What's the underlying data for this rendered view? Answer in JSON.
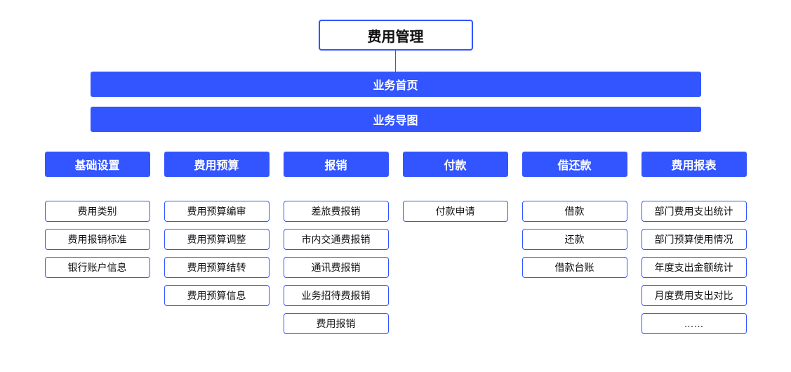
{
  "diagram": {
    "type": "tree",
    "background_color": "#ffffff",
    "accent_color": "#3355ff",
    "text_color": "#111111",
    "connector_color": "#3355ff",
    "border_radius": 4,
    "root_border_width": 2,
    "item_border_width": 1.5,
    "root_font_size": 20,
    "bar_font_size": 16,
    "header_font_size": 16,
    "item_font_size": 14,
    "root": {
      "label": "费用管理"
    },
    "bars": [
      {
        "label": "业务首页"
      },
      {
        "label": "业务导图"
      }
    ],
    "columns": [
      {
        "header": "基础设置",
        "items": [
          "费用类别",
          "费用报销标准",
          "银行账户信息"
        ]
      },
      {
        "header": "费用预算",
        "items": [
          "费用预算编审",
          "费用预算调整",
          "费用预算结转",
          "费用预算信息"
        ]
      },
      {
        "header": "报销",
        "items": [
          "差旅费报销",
          "市内交通费报销",
          "通讯费报销",
          "业务招待费报销",
          "费用报销"
        ]
      },
      {
        "header": "付款",
        "items": [
          "付款申请"
        ]
      },
      {
        "header": "借还款",
        "items": [
          "借款",
          "还款",
          "借款台账"
        ]
      },
      {
        "header": "费用报表",
        "items": [
          "部门费用支出统计",
          "部门预算使用情况",
          "年度支出金额统计",
          "月度费用支出对比",
          "……"
        ]
      }
    ]
  }
}
